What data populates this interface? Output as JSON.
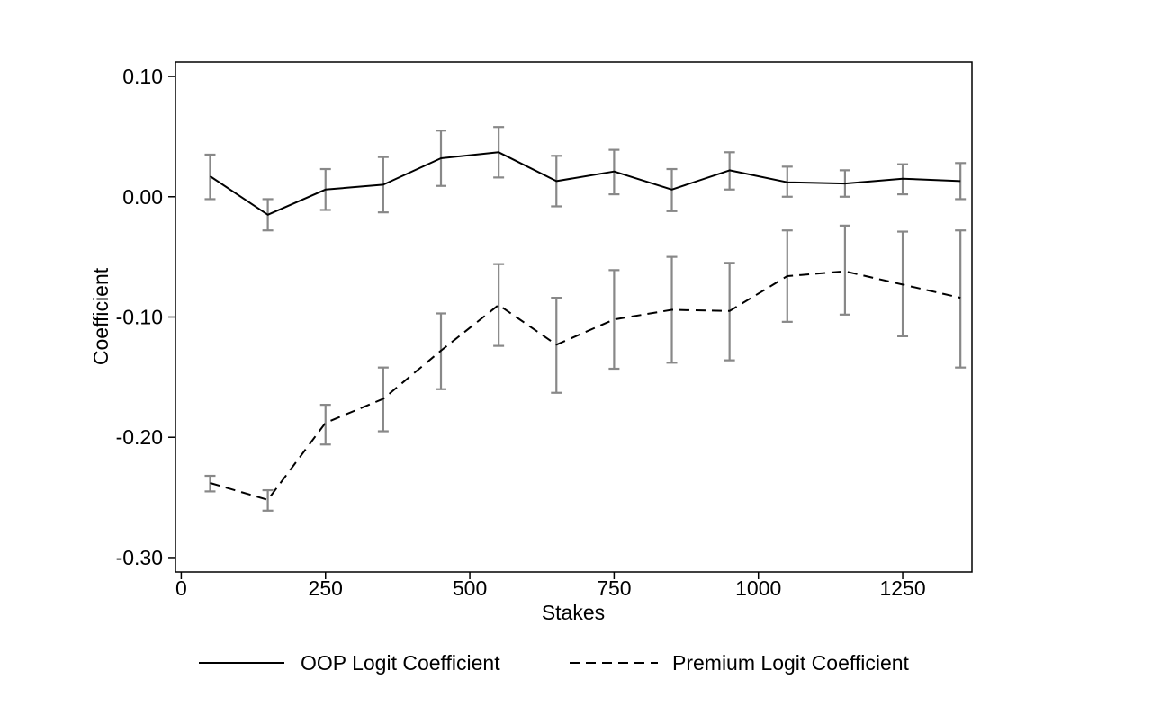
{
  "chart_data": {
    "type": "line",
    "title": "",
    "xlabel": "Stakes",
    "ylabel": "Coefficient",
    "xlim": [
      -10,
      1370
    ],
    "ylim": [
      -0.312,
      0.112
    ],
    "xticks": [
      0,
      250,
      500,
      750,
      1000,
      1250
    ],
    "xtick_labels": [
      "0",
      "250",
      "500",
      "750",
      "1000",
      "1250"
    ],
    "yticks": [
      0.1,
      0.0,
      -0.1,
      -0.2,
      -0.3
    ],
    "ytick_labels": [
      "0.10",
      "0.00",
      "-0.10",
      "-0.20",
      "-0.30"
    ],
    "grid": false,
    "legend_position": "bottom",
    "x": [
      50,
      150,
      250,
      350,
      450,
      550,
      650,
      750,
      850,
      950,
      1050,
      1150,
      1250,
      1350
    ],
    "series": [
      {
        "name": "OOP Logit Coefficient",
        "style": "solid",
        "color": "#000000",
        "values": [
          0.017,
          -0.015,
          0.006,
          0.01,
          0.032,
          0.037,
          0.013,
          0.021,
          0.006,
          0.022,
          0.012,
          0.011,
          0.015,
          0.013
        ],
        "ci_lower": [
          -0.002,
          -0.028,
          -0.011,
          -0.013,
          0.009,
          0.016,
          -0.008,
          0.002,
          -0.012,
          0.006,
          0.0,
          0.0,
          0.002,
          -0.002
        ],
        "ci_upper": [
          0.035,
          -0.002,
          0.023,
          0.033,
          0.055,
          0.058,
          0.034,
          0.039,
          0.023,
          0.037,
          0.025,
          0.022,
          0.027,
          0.028
        ]
      },
      {
        "name": "Premium Logit Coefficient",
        "style": "dashed",
        "color": "#000000",
        "values": [
          -0.238,
          -0.252,
          -0.188,
          -0.168,
          -0.128,
          -0.09,
          -0.123,
          -0.102,
          -0.094,
          -0.095,
          -0.066,
          -0.062,
          -0.073,
          -0.084
        ],
        "ci_lower": [
          -0.245,
          -0.261,
          -0.206,
          -0.195,
          -0.16,
          -0.124,
          -0.163,
          -0.143,
          -0.138,
          -0.136,
          -0.104,
          -0.098,
          -0.116,
          -0.142
        ],
        "ci_upper": [
          -0.232,
          -0.244,
          -0.173,
          -0.142,
          -0.097,
          -0.056,
          -0.084,
          -0.061,
          -0.05,
          -0.055,
          -0.028,
          -0.024,
          -0.029,
          -0.028
        ]
      }
    ],
    "error_bar_color": "#888888"
  }
}
